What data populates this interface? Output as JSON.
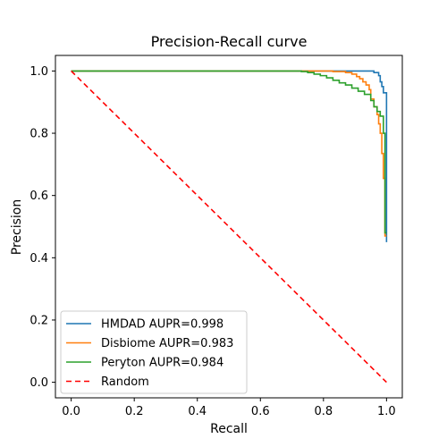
{
  "chart_data": {
    "type": "line",
    "title": "Precision-Recall curve",
    "xlabel": "Recall",
    "ylabel": "Precision",
    "xlim": [
      -0.05,
      1.05
    ],
    "ylim": [
      -0.05,
      1.05
    ],
    "xticks": [
      0.0,
      0.2,
      0.4,
      0.6,
      0.8,
      1.0
    ],
    "yticks": [
      0.0,
      0.2,
      0.4,
      0.6,
      0.8,
      1.0
    ],
    "xtick_labels": [
      "0.0",
      "0.2",
      "0.4",
      "0.6",
      "0.8",
      "1.0"
    ],
    "ytick_labels": [
      "0.0",
      "0.2",
      "0.4",
      "0.6",
      "0.8",
      "1.0"
    ],
    "grid": false,
    "legend_position": "lower-left",
    "series": [
      {
        "name": "HMDAD AUPR=0.998",
        "color": "#1f77b4",
        "style": "step",
        "points": [
          [
            0.0,
            1.0
          ],
          [
            0.96,
            1.0
          ],
          [
            0.96,
            0.995
          ],
          [
            0.975,
            0.995
          ],
          [
            0.975,
            0.985
          ],
          [
            0.98,
            0.985
          ],
          [
            0.98,
            0.965
          ],
          [
            0.985,
            0.965
          ],
          [
            0.985,
            0.95
          ],
          [
            0.99,
            0.95
          ],
          [
            0.99,
            0.93
          ],
          [
            1.0,
            0.93
          ],
          [
            1.0,
            0.45
          ]
        ]
      },
      {
        "name": "Disbiome AUPR=0.983",
        "color": "#ff7f0e",
        "style": "step",
        "points": [
          [
            0.0,
            1.0
          ],
          [
            0.83,
            1.0
          ],
          [
            0.83,
            0.998
          ],
          [
            0.87,
            0.998
          ],
          [
            0.87,
            0.995
          ],
          [
            0.89,
            0.995
          ],
          [
            0.89,
            0.99
          ],
          [
            0.905,
            0.99
          ],
          [
            0.905,
            0.982
          ],
          [
            0.915,
            0.982
          ],
          [
            0.915,
            0.975
          ],
          [
            0.925,
            0.975
          ],
          [
            0.925,
            0.965
          ],
          [
            0.935,
            0.965
          ],
          [
            0.935,
            0.955
          ],
          [
            0.945,
            0.955
          ],
          [
            0.945,
            0.94
          ],
          [
            0.95,
            0.94
          ],
          [
            0.95,
            0.91
          ],
          [
            0.96,
            0.91
          ],
          [
            0.96,
            0.885
          ],
          [
            0.97,
            0.885
          ],
          [
            0.97,
            0.86
          ],
          [
            0.975,
            0.86
          ],
          [
            0.975,
            0.83
          ],
          [
            0.98,
            0.83
          ],
          [
            0.98,
            0.8
          ],
          [
            0.985,
            0.8
          ],
          [
            0.985,
            0.735
          ],
          [
            0.99,
            0.735
          ],
          [
            0.99,
            0.655
          ],
          [
            0.995,
            0.655
          ],
          [
            0.995,
            0.47
          ],
          [
            1.0,
            0.47
          ]
        ]
      },
      {
        "name": "Peryton AUPR=0.984",
        "color": "#2ca02c",
        "style": "step",
        "points": [
          [
            0.0,
            1.0
          ],
          [
            0.73,
            1.0
          ],
          [
            0.73,
            0.998
          ],
          [
            0.75,
            0.998
          ],
          [
            0.75,
            0.995
          ],
          [
            0.77,
            0.995
          ],
          [
            0.77,
            0.99
          ],
          [
            0.79,
            0.99
          ],
          [
            0.79,
            0.985
          ],
          [
            0.81,
            0.985
          ],
          [
            0.81,
            0.978
          ],
          [
            0.83,
            0.978
          ],
          [
            0.83,
            0.97
          ],
          [
            0.85,
            0.97
          ],
          [
            0.85,
            0.962
          ],
          [
            0.87,
            0.962
          ],
          [
            0.87,
            0.955
          ],
          [
            0.89,
            0.955
          ],
          [
            0.89,
            0.945
          ],
          [
            0.91,
            0.945
          ],
          [
            0.91,
            0.935
          ],
          [
            0.93,
            0.935
          ],
          [
            0.93,
            0.925
          ],
          [
            0.95,
            0.925
          ],
          [
            0.95,
            0.905
          ],
          [
            0.96,
            0.905
          ],
          [
            0.96,
            0.885
          ],
          [
            0.97,
            0.885
          ],
          [
            0.97,
            0.87
          ],
          [
            0.98,
            0.87
          ],
          [
            0.98,
            0.855
          ],
          [
            0.99,
            0.855
          ],
          [
            0.99,
            0.8
          ],
          [
            0.995,
            0.8
          ],
          [
            0.995,
            0.48
          ],
          [
            1.0,
            0.48
          ]
        ]
      },
      {
        "name": "Random",
        "color": "#ff0000",
        "style": "dashed",
        "points": [
          [
            0.0,
            1.0
          ],
          [
            1.0,
            0.0
          ]
        ]
      }
    ]
  }
}
